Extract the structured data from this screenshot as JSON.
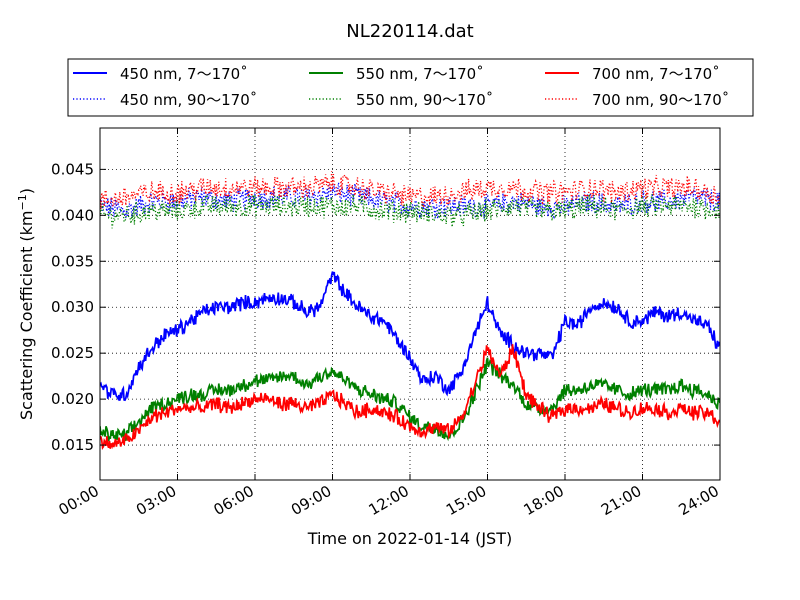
{
  "chart_data": {
    "type": "line",
    "title": "NL220114.dat",
    "xlabel": "Time on 2022-01-14 (JST)",
    "ylabel": "Scattering Coefficient (km",
    "ylabel_sup": "−1",
    "ylabel_close": ")",
    "xlim": [
      0,
      24
    ],
    "ylim": [
      0.0112,
      0.0495
    ],
    "x_unit": "hours",
    "xticks": [
      {
        "v": 0,
        "label": "00:00"
      },
      {
        "v": 3,
        "label": "03:00"
      },
      {
        "v": 6,
        "label": "06:00"
      },
      {
        "v": 9,
        "label": "09:00"
      },
      {
        "v": 12,
        "label": "12:00"
      },
      {
        "v": 15,
        "label": "15:00"
      },
      {
        "v": 18,
        "label": "18:00"
      },
      {
        "v": 21,
        "label": "21:00"
      },
      {
        "v": 24,
        "label": "24:00"
      }
    ],
    "yticks": [
      {
        "v": 0.015,
        "label": "0.015"
      },
      {
        "v": 0.02,
        "label": "0.020"
      },
      {
        "v": 0.025,
        "label": "0.025"
      },
      {
        "v": 0.03,
        "label": "0.030"
      },
      {
        "v": 0.035,
        "label": "0.035"
      },
      {
        "v": 0.04,
        "label": "0.040"
      },
      {
        "v": 0.045,
        "label": "0.045"
      }
    ],
    "grid": true,
    "legend_placement": "top, outside plot",
    "series": [
      {
        "name": "450 nm, 7～170˚",
        "color": "#0000ff",
        "style": "solid",
        "x": [
          0,
          0.5,
          1,
          1.5,
          2,
          2.5,
          3,
          3.5,
          4,
          4.5,
          5,
          5.5,
          6,
          6.5,
          7,
          7.5,
          8,
          8.5,
          9,
          9.5,
          10,
          10.5,
          11,
          11.5,
          12,
          12.5,
          13,
          13.5,
          14,
          14.5,
          15,
          15.5,
          16,
          16.5,
          17,
          17.5,
          18,
          18.5,
          19,
          19.5,
          20,
          20.5,
          21,
          21.5,
          22,
          22.5,
          23,
          23.5,
          24
        ],
        "y": [
          0.0215,
          0.0205,
          0.0205,
          0.0235,
          0.0255,
          0.027,
          0.0275,
          0.0285,
          0.0295,
          0.03,
          0.03,
          0.0305,
          0.0305,
          0.031,
          0.031,
          0.0305,
          0.0295,
          0.03,
          0.0335,
          0.0315,
          0.03,
          0.029,
          0.0285,
          0.0265,
          0.0245,
          0.022,
          0.0225,
          0.021,
          0.023,
          0.027,
          0.0305,
          0.027,
          0.026,
          0.025,
          0.025,
          0.0245,
          0.0285,
          0.028,
          0.03,
          0.0305,
          0.03,
          0.0285,
          0.0285,
          0.0295,
          0.029,
          0.0295,
          0.0285,
          0.028,
          0.0255
        ]
      },
      {
        "name": "450 nm, 90～170˚",
        "color": "#0000ff",
        "style": "dotted",
        "x": [
          0,
          1,
          2,
          3,
          4,
          5,
          6,
          7,
          8,
          9,
          10,
          11,
          12,
          13,
          14,
          15,
          16,
          17,
          18,
          19,
          20,
          21,
          22,
          23,
          24
        ],
        "y": [
          0.041,
          0.0405,
          0.0415,
          0.0415,
          0.042,
          0.0415,
          0.042,
          0.042,
          0.042,
          0.0425,
          0.042,
          0.0415,
          0.041,
          0.041,
          0.041,
          0.041,
          0.0415,
          0.041,
          0.041,
          0.0415,
          0.041,
          0.0415,
          0.0415,
          0.042,
          0.0415
        ]
      },
      {
        "name": "550 nm, 7～170˚",
        "color": "#008000",
        "style": "solid",
        "x": [
          0,
          0.5,
          1,
          1.5,
          2,
          2.5,
          3,
          3.5,
          4,
          4.5,
          5,
          5.5,
          6,
          6.5,
          7,
          7.5,
          8,
          8.5,
          9,
          9.5,
          10,
          10.5,
          11,
          11.5,
          12,
          12.5,
          13,
          13.5,
          14,
          14.5,
          15,
          15.5,
          16,
          16.5,
          17,
          17.5,
          18,
          18.5,
          19,
          19.5,
          20,
          20.5,
          21,
          21.5,
          22,
          22.5,
          23,
          23.5,
          24
        ],
        "y": [
          0.0165,
          0.016,
          0.016,
          0.0175,
          0.019,
          0.0195,
          0.02,
          0.0205,
          0.0205,
          0.021,
          0.021,
          0.0215,
          0.022,
          0.022,
          0.0225,
          0.0225,
          0.0215,
          0.0225,
          0.023,
          0.022,
          0.021,
          0.0205,
          0.02,
          0.0195,
          0.018,
          0.017,
          0.017,
          0.016,
          0.0175,
          0.0205,
          0.024,
          0.0225,
          0.0215,
          0.0195,
          0.019,
          0.019,
          0.021,
          0.021,
          0.0215,
          0.0215,
          0.021,
          0.0205,
          0.021,
          0.021,
          0.021,
          0.0215,
          0.021,
          0.0205,
          0.0195
        ]
      },
      {
        "name": "550 nm, 90～170˚",
        "color": "#008000",
        "style": "dotted",
        "x": [
          0,
          1,
          2,
          3,
          4,
          5,
          6,
          7,
          8,
          9,
          10,
          11,
          12,
          13,
          14,
          15,
          16,
          17,
          18,
          19,
          20,
          21,
          22,
          23,
          24
        ],
        "y": [
          0.04,
          0.04,
          0.0405,
          0.0405,
          0.041,
          0.041,
          0.041,
          0.041,
          0.041,
          0.041,
          0.041,
          0.0405,
          0.0405,
          0.04,
          0.04,
          0.0405,
          0.041,
          0.0405,
          0.0405,
          0.041,
          0.0405,
          0.041,
          0.041,
          0.041,
          0.0405
        ]
      },
      {
        "name": "700 nm, 7～170˚",
        "color": "#ff0000",
        "style": "solid",
        "x": [
          0,
          0.5,
          1,
          1.5,
          2,
          2.5,
          3,
          3.5,
          4,
          4.5,
          5,
          5.5,
          6,
          6.5,
          7,
          7.5,
          8,
          8.5,
          9,
          9.5,
          10,
          10.5,
          11,
          11.5,
          12,
          12.5,
          13,
          13.5,
          14,
          14.5,
          15,
          15.5,
          16,
          16.5,
          17,
          17.5,
          18,
          18.5,
          19,
          19.5,
          20,
          20.5,
          21,
          21.5,
          22,
          22.5,
          23,
          23.5,
          24
        ],
        "y": [
          0.0155,
          0.015,
          0.0155,
          0.0165,
          0.018,
          0.0185,
          0.019,
          0.019,
          0.019,
          0.0195,
          0.019,
          0.0195,
          0.02,
          0.02,
          0.0195,
          0.0195,
          0.019,
          0.0195,
          0.0205,
          0.0195,
          0.0185,
          0.019,
          0.0185,
          0.018,
          0.017,
          0.0165,
          0.017,
          0.0165,
          0.018,
          0.0215,
          0.0255,
          0.0225,
          0.0255,
          0.0205,
          0.019,
          0.018,
          0.019,
          0.019,
          0.019,
          0.0195,
          0.019,
          0.0185,
          0.019,
          0.019,
          0.0185,
          0.019,
          0.0185,
          0.0185,
          0.0175
        ]
      },
      {
        "name": "700 nm, 90～170˚",
        "color": "#ff0000",
        "style": "dotted",
        "x": [
          0,
          1,
          2,
          3,
          4,
          5,
          6,
          7,
          8,
          9,
          10,
          11,
          12,
          13,
          14,
          15,
          16,
          17,
          18,
          19,
          20,
          21,
          22,
          23,
          24
        ],
        "y": [
          0.0415,
          0.042,
          0.0425,
          0.0425,
          0.043,
          0.043,
          0.043,
          0.043,
          0.043,
          0.0435,
          0.043,
          0.0425,
          0.042,
          0.042,
          0.0425,
          0.043,
          0.043,
          0.0425,
          0.0425,
          0.043,
          0.0425,
          0.043,
          0.043,
          0.043,
          0.042
        ]
      }
    ]
  }
}
